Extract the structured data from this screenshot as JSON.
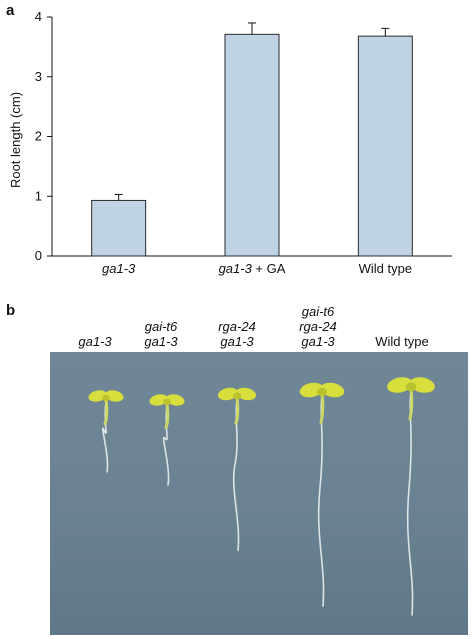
{
  "panel_a": {
    "letter": "a"
  },
  "panel_b": {
    "letter": "b",
    "labels": [
      {
        "lines": [
          "ga1-3"
        ]
      },
      {
        "lines": [
          "gai-t6",
          "ga1-3"
        ]
      },
      {
        "lines": [
          "rga-24",
          "ga1-3"
        ]
      },
      {
        "lines": [
          "gai-t6",
          "rga-24",
          "ga1-3"
        ]
      },
      {
        "lines": [
          "Wild type"
        ]
      }
    ],
    "seedlings": [
      {
        "label": "ga1-3",
        "root_length_rel": 0.33
      },
      {
        "label": "gai-t6 ga1-3",
        "root_length_rel": 0.37
      },
      {
        "label": "rga-24 ga1-3",
        "root_length_rel": 0.68
      },
      {
        "label": "gai-t6 rga-24 ga1-3",
        "root_length_rel": 0.94
      },
      {
        "label": "Wild type",
        "root_length_rel": 1.0
      }
    ]
  },
  "chart_data": {
    "type": "bar",
    "ylabel": "Root length (cm)",
    "ylim": [
      0,
      4
    ],
    "yticks": [
      "0",
      "1",
      "2",
      "3",
      "4"
    ],
    "categories": [
      {
        "italic": "ga1-3",
        "plain": ""
      },
      {
        "italic": "ga1-3",
        "plain": " + GA"
      },
      {
        "italic": "",
        "plain": "Wild type"
      }
    ],
    "values": [
      0.93,
      3.71,
      3.68
    ],
    "errors": [
      0.1,
      0.19,
      0.13
    ],
    "bar_color": "#bfd3e5",
    "grid": false
  },
  "colors": {
    "photo_bg": "#6a8292",
    "leaf": "#d8df3c",
    "root": "#e9eef0"
  }
}
